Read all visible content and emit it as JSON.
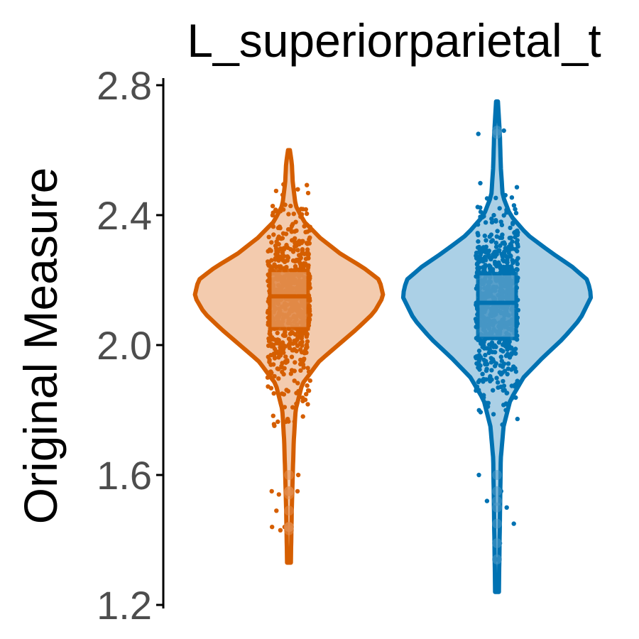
{
  "chart_data": {
    "type": "violin",
    "title": "L_superiorparietal_t",
    "xlabel": "",
    "ylabel": "Original Measure",
    "ylim": [
      1.2,
      2.8
    ],
    "y_ticks": [
      {
        "value": 1.2,
        "label": "1.2"
      },
      {
        "value": 1.6,
        "label": "1.6"
      },
      {
        "value": 2.0,
        "label": "2.0"
      },
      {
        "value": 2.4,
        "label": "2.4"
      },
      {
        "value": 2.8,
        "label": "2.8"
      }
    ],
    "grid": false,
    "legend": "none",
    "groups": [
      {
        "color": "#d55e00",
        "fill": "#f3cbae",
        "box_fill": "#e38e4e",
        "min": 1.33,
        "max": 2.6,
        "q1": 2.05,
        "median": 2.15,
        "q3": 2.23,
        "density_profile": [
          [
            1.33,
            0.02
          ],
          [
            1.5,
            0.03
          ],
          [
            1.7,
            0.05
          ],
          [
            1.8,
            0.07
          ],
          [
            1.88,
            0.14
          ],
          [
            1.95,
            0.32
          ],
          [
            2.0,
            0.52
          ],
          [
            2.05,
            0.72
          ],
          [
            2.1,
            0.9
          ],
          [
            2.15,
            1.0
          ],
          [
            2.2,
            0.96
          ],
          [
            2.24,
            0.78
          ],
          [
            2.28,
            0.55
          ],
          [
            2.33,
            0.33
          ],
          [
            2.38,
            0.16
          ],
          [
            2.43,
            0.07
          ],
          [
            2.5,
            0.04
          ],
          [
            2.56,
            0.03
          ],
          [
            2.6,
            0.01
          ]
        ],
        "outliers": [
          1.6,
          1.55,
          1.49,
          1.44,
          1.43,
          1.54,
          1.44,
          1.55
        ]
      },
      {
        "color": "#0072b2",
        "fill": "#abd0e6",
        "box_fill": "#4e9ac8",
        "min": 1.24,
        "max": 2.75,
        "q1": 2.02,
        "median": 2.13,
        "q3": 2.22,
        "density_profile": [
          [
            1.24,
            0.02
          ],
          [
            1.45,
            0.03
          ],
          [
            1.65,
            0.04
          ],
          [
            1.75,
            0.07
          ],
          [
            1.83,
            0.14
          ],
          [
            1.9,
            0.28
          ],
          [
            1.96,
            0.48
          ],
          [
            2.02,
            0.7
          ],
          [
            2.08,
            0.88
          ],
          [
            2.15,
            1.0
          ],
          [
            2.2,
            0.96
          ],
          [
            2.24,
            0.8
          ],
          [
            2.29,
            0.55
          ],
          [
            2.34,
            0.32
          ],
          [
            2.4,
            0.14
          ],
          [
            2.46,
            0.06
          ],
          [
            2.55,
            0.04
          ],
          [
            2.65,
            0.03
          ],
          [
            2.75,
            0.01
          ]
        ],
        "outliers": [
          2.66,
          2.65,
          1.6,
          1.52,
          1.45,
          1.39,
          1.34,
          1.55,
          1.5
        ]
      }
    ]
  }
}
